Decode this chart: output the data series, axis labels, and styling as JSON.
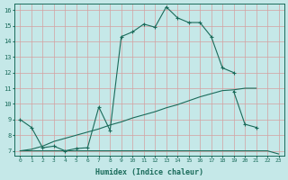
{
  "xlabel": "Humidex (Indice chaleur)",
  "bg_color": "#c5e8e8",
  "line_color": "#1a6b5a",
  "grid_color": "#d4a0a0",
  "xlim": [
    -0.5,
    23.5
  ],
  "ylim": [
    6.7,
    16.4
  ],
  "yticks": [
    7,
    8,
    9,
    10,
    11,
    12,
    13,
    14,
    15,
    16
  ],
  "xticks": [
    0,
    1,
    2,
    3,
    4,
    5,
    6,
    7,
    8,
    9,
    10,
    11,
    12,
    13,
    14,
    15,
    16,
    17,
    18,
    19,
    20,
    21,
    22,
    23
  ],
  "curves": [
    {
      "x": [
        0,
        1,
        2,
        3,
        4,
        5,
        6,
        7,
        8,
        9,
        10,
        11,
        12,
        13,
        14,
        15,
        16,
        17,
        18,
        19
      ],
      "y": [
        9.0,
        8.5,
        7.2,
        7.3,
        7.0,
        7.15,
        7.2,
        9.8,
        8.3,
        14.3,
        14.6,
        15.1,
        14.9,
        16.2,
        15.5,
        15.2,
        15.2,
        14.3,
        12.3,
        12.0
      ],
      "has_markers": true
    },
    {
      "x": [
        19,
        20,
        21
      ],
      "y": [
        10.8,
        8.7,
        8.5
      ],
      "has_markers": true
    },
    {
      "x": [
        0,
        1,
        2,
        3,
        4,
        5,
        6,
        7,
        8,
        9,
        10,
        11,
        12,
        13,
        14,
        15,
        16,
        17,
        18,
        19,
        20,
        21,
        22,
        23
      ],
      "y": [
        7.0,
        7.0,
        7.0,
        7.0,
        7.0,
        7.0,
        7.0,
        7.0,
        7.0,
        7.0,
        7.0,
        7.0,
        7.0,
        7.0,
        7.0,
        7.0,
        7.0,
        7.0,
        7.0,
        7.0,
        7.0,
        7.0,
        7.0,
        6.8
      ],
      "has_markers": false
    },
    {
      "x": [
        0,
        1,
        2,
        3,
        4,
        5,
        6,
        7,
        8,
        9,
        10,
        11,
        12,
        13,
        14,
        15,
        16,
        17,
        18,
        19,
        20,
        21
      ],
      "y": [
        7.0,
        7.1,
        7.3,
        7.6,
        7.8,
        8.0,
        8.2,
        8.4,
        8.65,
        8.85,
        9.1,
        9.3,
        9.5,
        9.75,
        9.95,
        10.2,
        10.45,
        10.65,
        10.85,
        10.9,
        11.0,
        11.0
      ],
      "has_markers": false
    }
  ]
}
